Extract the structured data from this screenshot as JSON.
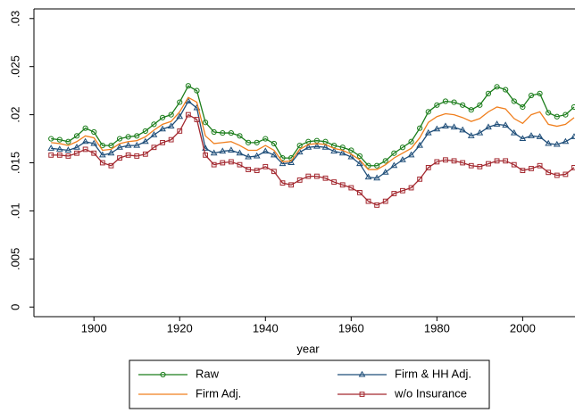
{
  "chart_data": {
    "type": "line",
    "x_label": "year",
    "x": [
      1890,
      1892,
      1894,
      1896,
      1898,
      1900,
      1902,
      1904,
      1906,
      1908,
      1910,
      1912,
      1914,
      1916,
      1918,
      1920,
      1922,
      1924,
      1926,
      1928,
      1930,
      1932,
      1934,
      1936,
      1938,
      1940,
      1942,
      1944,
      1946,
      1948,
      1950,
      1952,
      1954,
      1956,
      1958,
      1960,
      1962,
      1964,
      1966,
      1968,
      1970,
      1972,
      1974,
      1976,
      1978,
      1980,
      1982,
      1984,
      1986,
      1988,
      1990,
      1992,
      1994,
      1996,
      1998,
      2000,
      2002,
      2004,
      2006,
      2008,
      2010,
      2012
    ],
    "series": [
      {
        "name": "Raw",
        "color": "#1b7d1b",
        "marker": "circle",
        "values": [
          0.0175,
          0.0174,
          0.0172,
          0.0178,
          0.0186,
          0.0182,
          0.0168,
          0.0168,
          0.0175,
          0.0177,
          0.0178,
          0.0183,
          0.019,
          0.0197,
          0.02,
          0.0213,
          0.023,
          0.0225,
          0.0192,
          0.0182,
          0.0181,
          0.0181,
          0.0178,
          0.0171,
          0.0171,
          0.0175,
          0.017,
          0.0155,
          0.0155,
          0.0168,
          0.0172,
          0.0173,
          0.0172,
          0.0168,
          0.0166,
          0.0163,
          0.0157,
          0.0147,
          0.0147,
          0.0152,
          0.016,
          0.0166,
          0.0172,
          0.0186,
          0.0203,
          0.021,
          0.0214,
          0.0213,
          0.021,
          0.0205,
          0.021,
          0.0222,
          0.0229,
          0.0226,
          0.0214,
          0.0208,
          0.022,
          0.0222,
          0.0202,
          0.0198,
          0.02,
          0.0208
        ]
      },
      {
        "name": "Firm & HH Adj.",
        "color": "#1f4e79",
        "marker": "triangle",
        "values": [
          0.0165,
          0.0164,
          0.0163,
          0.0166,
          0.0172,
          0.017,
          0.0158,
          0.016,
          0.0166,
          0.0168,
          0.0168,
          0.0172,
          0.0179,
          0.0185,
          0.0188,
          0.0198,
          0.0214,
          0.0207,
          0.0165,
          0.016,
          0.0162,
          0.0163,
          0.016,
          0.0156,
          0.0157,
          0.0162,
          0.0158,
          0.0149,
          0.015,
          0.0161,
          0.0166,
          0.0167,
          0.0166,
          0.0162,
          0.016,
          0.0156,
          0.0149,
          0.0135,
          0.0134,
          0.014,
          0.0147,
          0.0153,
          0.0158,
          0.0168,
          0.0181,
          0.0185,
          0.0188,
          0.0187,
          0.0184,
          0.0178,
          0.0181,
          0.0187,
          0.019,
          0.0189,
          0.0181,
          0.0175,
          0.0178,
          0.0177,
          0.017,
          0.0169,
          0.0172,
          0.0177
        ]
      },
      {
        "name": "Firm Adj.",
        "color": "#f07f1e",
        "marker": null,
        "values": [
          0.0171,
          0.017,
          0.0168,
          0.0172,
          0.0178,
          0.0176,
          0.0163,
          0.0164,
          0.017,
          0.0172,
          0.0173,
          0.0177,
          0.0184,
          0.019,
          0.0193,
          0.0203,
          0.0218,
          0.0213,
          0.0178,
          0.017,
          0.0171,
          0.0172,
          0.0168,
          0.0163,
          0.0163,
          0.0168,
          0.0163,
          0.0151,
          0.0152,
          0.0164,
          0.0169,
          0.017,
          0.0169,
          0.0165,
          0.0163,
          0.0159,
          0.0153,
          0.0143,
          0.0143,
          0.0148,
          0.0155,
          0.016,
          0.0165,
          0.0176,
          0.0192,
          0.0198,
          0.0201,
          0.02,
          0.0197,
          0.0193,
          0.0196,
          0.0203,
          0.0208,
          0.0206,
          0.0196,
          0.0191,
          0.02,
          0.0203,
          0.019,
          0.0188,
          0.019,
          0.0197
        ]
      },
      {
        "name": "w/o Insurance",
        "color": "#a3282f",
        "marker": "square",
        "values": [
          0.0158,
          0.0158,
          0.0157,
          0.016,
          0.0164,
          0.016,
          0.015,
          0.0147,
          0.0155,
          0.0158,
          0.0157,
          0.0159,
          0.0166,
          0.0171,
          0.0174,
          0.0183,
          0.02,
          0.0195,
          0.0158,
          0.0148,
          0.015,
          0.0151,
          0.0148,
          0.0143,
          0.0142,
          0.0146,
          0.0141,
          0.0129,
          0.0127,
          0.0132,
          0.0136,
          0.0136,
          0.0134,
          0.013,
          0.0127,
          0.0124,
          0.0119,
          0.011,
          0.0106,
          0.011,
          0.0118,
          0.0121,
          0.0124,
          0.0133,
          0.0145,
          0.0151,
          0.0153,
          0.0152,
          0.015,
          0.0147,
          0.0146,
          0.0149,
          0.0152,
          0.0152,
          0.0148,
          0.0142,
          0.0144,
          0.0147,
          0.014,
          0.0137,
          0.0138,
          0.0145
        ]
      }
    ],
    "xlim": [
      1886,
      2012
    ],
    "xticks": [
      1900,
      1920,
      1940,
      1960,
      1980,
      2000
    ],
    "ylim": [
      -0.001,
      0.031
    ],
    "yticks": [
      0,
      {
        "value": 0.005,
        "label": ".005"
      },
      {
        "value": 0.01,
        "label": ".01"
      },
      {
        "value": 0.015,
        "label": ".015"
      },
      {
        "value": 0.02,
        "label": ".02"
      },
      {
        "value": 0.025,
        "label": ".025"
      },
      {
        "value": 0.03,
        "label": ".03"
      }
    ],
    "legend": "bottom"
  }
}
